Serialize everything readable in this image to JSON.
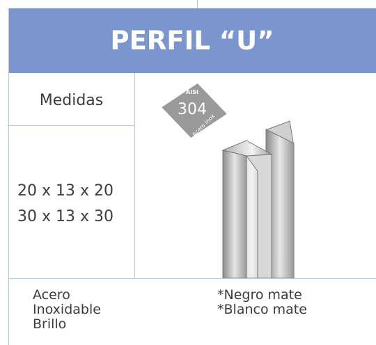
{
  "header": {
    "title": "PERFIL “U”"
  },
  "table": {
    "label": "Medidas",
    "sizes": [
      "20 x 13 x 20",
      "30 x 13 x 30"
    ],
    "badge": {
      "top": "AISI",
      "number": "304",
      "bottom": "Acero inox"
    },
    "material": [
      "Acero",
      "Inoxidable",
      "Brillo"
    ],
    "finishes": [
      "*Negro mate",
      "*Blanco mate"
    ]
  }
}
